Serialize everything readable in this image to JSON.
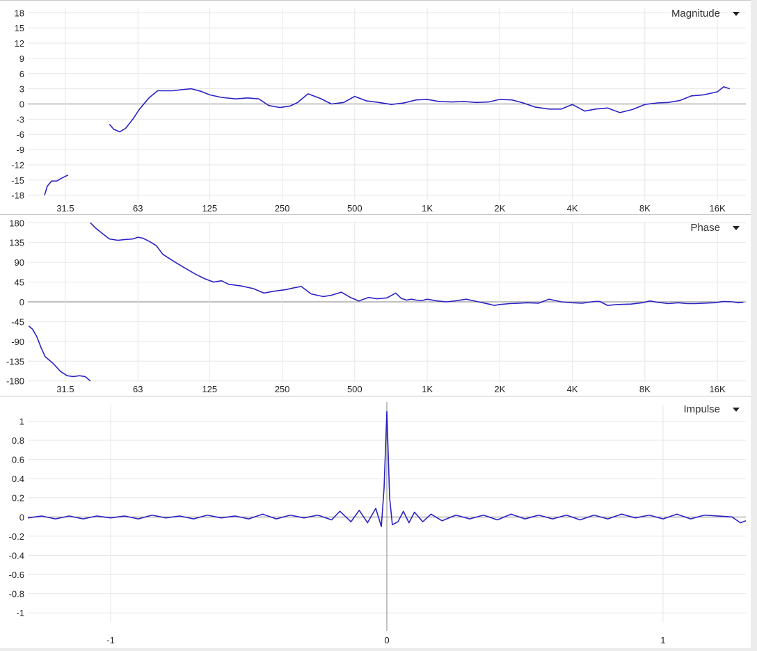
{
  "colors": {
    "trace": "#2a22c4",
    "grid": "#e6e6e6",
    "zero_line": "#999999"
  },
  "panels": {
    "magnitude": {
      "selector_label": "Magnitude",
      "selector_icon": "chevron-down-icon"
    },
    "phase": {
      "selector_label": "Phase",
      "selector_icon": "chevron-down-icon"
    },
    "impulse": {
      "selector_label": "Impulse",
      "selector_icon": "chevron-down-icon"
    }
  },
  "chart_data": [
    {
      "type": "line",
      "panel": "magnitude",
      "x_scale": "log",
      "xlim": [
        22,
        21000
      ],
      "ylim": [
        -19,
        19
      ],
      "y_ticks": [
        18,
        15,
        12,
        9,
        6,
        3,
        0,
        -3,
        -6,
        -9,
        -12,
        -15,
        -18
      ],
      "y_tick_labels": [
        "18",
        "15",
        "12",
        "9",
        "6",
        "3",
        "0",
        "-3",
        "-6",
        "-9",
        "-12",
        "-15",
        "-18"
      ],
      "x_ticks": [
        31.5,
        63,
        125,
        250,
        500,
        1000,
        2000,
        4000,
        8000,
        16000
      ],
      "x_tick_labels": [
        "31.5",
        "63",
        "125",
        "250",
        "500",
        "1K",
        "2K",
        "4K",
        "8K",
        "16K"
      ],
      "series": [
        {
          "x": [
            25.8,
            26.5,
            27.6,
            29.0,
            30.2,
            32.3
          ],
          "y": [
            -18.0,
            -16.2,
            -15.2,
            -15.2,
            -14.7,
            -14.0
          ]
        },
        {
          "x": [
            48,
            50,
            53,
            56,
            60,
            64,
            70,
            76,
            82,
            88,
            95,
            105,
            115,
            125,
            140,
            160,
            180,
            200,
            220,
            245,
            270,
            290,
            320,
            360,
            400,
            450,
            500,
            560,
            630,
            710,
            800,
            900,
            1000,
            1120,
            1260,
            1420,
            1600,
            1800,
            2000,
            2250,
            2500,
            2800,
            3200,
            3600,
            4000,
            4500,
            5000,
            5600,
            6300,
            7100,
            8000,
            9000,
            10000,
            11200,
            12500,
            14000,
            16000,
            17000,
            18000
          ],
          "y": [
            -4.0,
            -5.0,
            -5.5,
            -4.8,
            -3.0,
            -1.0,
            1.2,
            2.6,
            2.6,
            2.6,
            2.8,
            3.0,
            2.5,
            1.8,
            1.3,
            1.0,
            1.2,
            1.0,
            -0.3,
            -0.7,
            -0.4,
            0.3,
            2.0,
            1.1,
            0.0,
            0.3,
            1.5,
            0.6,
            0.3,
            -0.1,
            0.2,
            0.8,
            0.9,
            0.5,
            0.4,
            0.5,
            0.3,
            0.4,
            0.9,
            0.8,
            0.2,
            -0.6,
            -1.0,
            -1.0,
            -0.1,
            -1.4,
            -1.0,
            -0.8,
            -1.7,
            -1.1,
            -0.1,
            0.2,
            0.3,
            0.7,
            1.6,
            1.8,
            2.4,
            3.4,
            3.0
          ]
        }
      ]
    },
    {
      "type": "line",
      "panel": "phase",
      "x_scale": "log",
      "xlim": [
        22,
        21000
      ],
      "ylim": [
        -182,
        182
      ],
      "y_ticks": [
        180,
        135,
        90,
        45,
        0,
        -45,
        -90,
        -135,
        -180
      ],
      "y_tick_labels": [
        "180",
        "135",
        "90",
        "45",
        "0",
        "-45",
        "-90",
        "-135",
        "-180"
      ],
      "x_ticks": [
        31.5,
        63,
        125,
        250,
        500,
        1000,
        2000,
        4000,
        8000,
        16000
      ],
      "x_tick_labels": [
        "31.5",
        "63",
        "125",
        "250",
        "500",
        "1K",
        "2K",
        "4K",
        "8K",
        "16K"
      ],
      "series": [
        {
          "x": [
            22.2,
            23.0,
            24.0,
            25.0,
            26.0,
            28.0,
            30.0,
            32.0,
            34.0,
            36.0,
            38.0,
            40.0
          ],
          "y": [
            -55,
            -62,
            -80,
            -105,
            -125,
            -140,
            -158,
            -168,
            -170,
            -168,
            -170,
            -180
          ]
        },
        {
          "x": [
            40,
            42,
            45,
            48,
            52,
            56,
            60,
            63,
            66,
            70,
            75,
            80,
            90,
            100,
            110,
            120,
            130,
            140,
            150,
            170,
            190,
            210,
            230,
            260,
            280,
            300,
            330,
            370,
            400,
            440,
            480,
            520,
            570,
            620,
            680,
            740,
            780,
            820,
            860,
            900,
            950,
            1000,
            1100,
            1200,
            1300,
            1450,
            1600,
            1800,
            1900,
            2000,
            2200,
            2400,
            2600,
            2900,
            3200,
            3400,
            3600,
            4000,
            4400,
            4800,
            5000,
            5200,
            5600,
            6200,
            7000,
            7800,
            8400,
            9000,
            10000,
            11000,
            12000,
            13000,
            14000,
            15500,
            17000,
            18500,
            19500,
            20500
          ],
          "y": [
            180,
            168,
            155,
            143,
            140,
            142,
            143,
            147,
            145,
            138,
            128,
            108,
            90,
            75,
            62,
            52,
            45,
            48,
            40,
            36,
            30,
            20,
            24,
            28,
            32,
            35,
            18,
            12,
            15,
            22,
            10,
            2,
            10,
            7,
            9,
            20,
            8,
            4,
            6,
            4,
            3,
            6,
            2,
            0,
            2,
            6,
            1,
            -5,
            -8,
            -6,
            -4,
            -3,
            -2,
            -3,
            6,
            3,
            0,
            -2,
            -3,
            0,
            1,
            1,
            -8,
            -6,
            -5,
            -2,
            2,
            -1,
            -4,
            -2,
            -4,
            -4,
            -3,
            -2,
            1,
            0,
            -2,
            -1
          ]
        }
      ]
    },
    {
      "type": "line",
      "panel": "impulse",
      "xlim": [
        -1.3,
        1.3
      ],
      "ylim": [
        -1.1,
        1.17
      ],
      "y_ticks": [
        1,
        0.8,
        0.6,
        0.4,
        0.2,
        0,
        -0.2,
        -0.4,
        -0.6,
        -0.8,
        -1
      ],
      "y_tick_labels": [
        "1",
        "0.8",
        "0.6",
        "0.4",
        "0.2",
        "0",
        "-0.2",
        "-0.4",
        "-0.6",
        "-0.8",
        "-1"
      ],
      "x_ticks": [
        -1,
        0,
        1
      ],
      "x_tick_labels": [
        "-1",
        "0",
        "1"
      ],
      "series": [
        {
          "x": [
            -1.3,
            -1.25,
            -1.2,
            -1.15,
            -1.1,
            -1.05,
            -1.0,
            -0.95,
            -0.9,
            -0.85,
            -0.8,
            -0.75,
            -0.7,
            -0.65,
            -0.6,
            -0.55,
            -0.5,
            -0.45,
            -0.4,
            -0.35,
            -0.3,
            -0.25,
            -0.2,
            -0.17,
            -0.13,
            -0.1,
            -0.07,
            -0.04,
            -0.02,
            -0.01,
            0.0,
            0.01,
            0.02,
            0.04,
            0.06,
            0.08,
            0.1,
            0.13,
            0.16,
            0.2,
            0.25,
            0.3,
            0.35,
            0.4,
            0.45,
            0.5,
            0.55,
            0.6,
            0.65,
            0.7,
            0.75,
            0.8,
            0.85,
            0.9,
            0.95,
            1.0,
            1.05,
            1.1,
            1.15,
            1.2,
            1.25,
            1.28,
            1.3
          ],
          "y": [
            -0.01,
            0.01,
            -0.02,
            0.01,
            -0.02,
            0.01,
            -0.01,
            0.01,
            -0.02,
            0.02,
            -0.01,
            0.01,
            -0.02,
            0.02,
            -0.01,
            0.01,
            -0.02,
            0.03,
            -0.02,
            0.02,
            -0.01,
            0.02,
            -0.03,
            0.06,
            -0.05,
            0.07,
            -0.06,
            0.09,
            -0.1,
            0.3,
            1.1,
            0.2,
            -0.08,
            -0.05,
            0.06,
            -0.06,
            0.05,
            -0.05,
            0.03,
            -0.04,
            0.02,
            -0.02,
            0.02,
            -0.03,
            0.03,
            -0.02,
            0.02,
            -0.02,
            0.02,
            -0.03,
            0.02,
            -0.02,
            0.03,
            -0.01,
            0.02,
            -0.02,
            0.03,
            -0.02,
            0.02,
            0.01,
            0.0,
            -0.06,
            -0.04
          ]
        }
      ]
    }
  ]
}
